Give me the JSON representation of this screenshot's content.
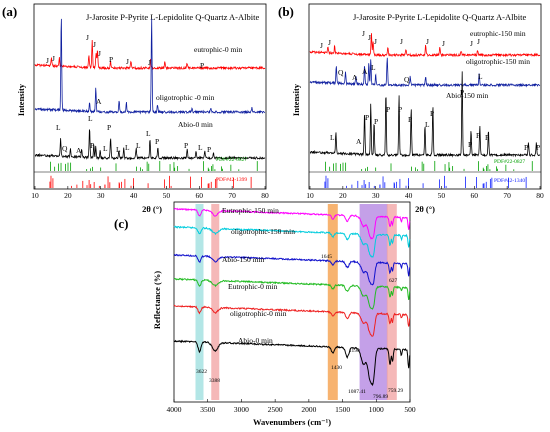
{
  "chart_data": [
    {
      "panel": "(a)",
      "type": "line",
      "legend": "J-Jarosite  P-Pyrite  L-Lepidolite  Q-Quartz  A-Albite",
      "xlabel": "2θ (°)",
      "ylabel": "Intensity",
      "xlim": [
        10,
        80
      ],
      "xticks": [
        "10",
        "20",
        "30",
        "40",
        "50",
        "60",
        "70",
        "80"
      ],
      "series": [
        {
          "name": "eutrophic-0 min",
          "color": "#ff0000",
          "peaks": [
            [
              15,
              0.25
            ],
            [
              17.4,
              0.3
            ],
            [
              26.4,
              0.4
            ],
            [
              27.4,
              0.9
            ],
            [
              28.6,
              0.5
            ],
            [
              29,
              0.6
            ],
            [
              33,
              0.2
            ],
            [
              39.2,
              0.25
            ],
            [
              45.2,
              0.3
            ],
            [
              49.5,
              0.2
            ],
            [
              56.3,
              0.15
            ]
          ]
        },
        {
          "name": "oligotrophic -0 min",
          "color": "#1020a0",
          "peaks": [
            [
              18,
              1.0
            ],
            [
              26.6,
              0.1
            ],
            [
              28.5,
              0.25
            ],
            [
              35.6,
              0.12
            ],
            [
              37.8,
              0.1
            ],
            [
              45.5,
              1.0
            ],
            [
              47.3,
              0.08
            ],
            [
              57.8,
              0.05
            ],
            [
              63.5,
              0.05
            ],
            [
              76,
              0.05
            ]
          ]
        },
        {
          "name": "Abio-0 min",
          "color": "#000000",
          "peaks": [
            [
              17.8,
              0.45
            ],
            [
              20.8,
              0.2
            ],
            [
              24.2,
              0.2
            ],
            [
              26.6,
              0.8
            ],
            [
              27.9,
              0.35
            ],
            [
              28.5,
              0.3
            ],
            [
              29.8,
              0.2
            ],
            [
              33,
              0.55
            ],
            [
              35.5,
              0.2
            ],
            [
              37,
              0.25
            ],
            [
              40.8,
              0.25
            ],
            [
              45,
              0.5
            ],
            [
              47.4,
              0.3
            ],
            [
              56.3,
              0.25
            ],
            [
              59,
              0.2
            ],
            [
              61.7,
              0.2
            ],
            [
              64.3,
              0.15
            ]
          ]
        }
      ],
      "peak_labels": {
        "eutrophic": [
          "J",
          "J",
          "J",
          "J",
          "J",
          "P",
          "J",
          "J",
          "P"
        ],
        "oligotrophic": [
          "A"
        ],
        "abio": [
          "L",
          "Q",
          "A",
          "L",
          "P",
          "L",
          "P",
          "L",
          "L",
          "L",
          "L",
          "P",
          "P",
          "L",
          "P"
        ]
      },
      "reference_cards": [
        "PDF#22-0827",
        "PDF#42-1399"
      ],
      "reference_colors": [
        "#00a000",
        "#ff0000"
      ]
    },
    {
      "panel": "(b)",
      "type": "line",
      "legend": "J-Jarosite  P-Pyrite  L-Lepidolite  Q-Quartz  A-Albite",
      "xlabel": "2θ (°)",
      "ylabel": "Intensity",
      "xlim": [
        10,
        80
      ],
      "xticks": [
        "10",
        "20",
        "30",
        "40",
        "50",
        "60",
        "70",
        "80"
      ],
      "series": [
        {
          "name": "eutrophic-150 min",
          "color": "#ff0000",
          "peaks": [
            [
              15.5,
              0.25
            ],
            [
              17.5,
              0.3
            ],
            [
              28.7,
              0.9
            ],
            [
              29.2,
              0.5
            ],
            [
              33.7,
              0.3
            ],
            [
              39.2,
              0.25
            ],
            [
              45.2,
              0.4
            ],
            [
              49.5,
              0.3
            ],
            [
              56,
              0.15
            ],
            [
              61,
              0.2
            ]
          ]
        },
        {
          "name": "oligotrophic-150 min",
          "color": "#1020a0",
          "peaks": [
            [
              18,
              0.6
            ],
            [
              20.8,
              0.4
            ],
            [
              24,
              0.3
            ],
            [
              26.6,
              0.7
            ],
            [
              27.9,
              0.8
            ],
            [
              28.5,
              0.9
            ],
            [
              30,
              0.4
            ],
            [
              33.5,
              1.0
            ],
            [
              40.5,
              0.3
            ],
            [
              45.2,
              0.3
            ],
            [
              61.5,
              0.4
            ]
          ]
        },
        {
          "name": "Abio-150 min",
          "color": "#000000",
          "peaks": [
            [
              17.9,
              0.25
            ],
            [
              26.6,
              0.5
            ],
            [
              28.5,
              0.6
            ],
            [
              29.5,
              0.4
            ],
            [
              33.1,
              0.75
            ],
            [
              37.1,
              0.7
            ],
            [
              40.8,
              0.55
            ],
            [
              45,
              0.35
            ],
            [
              47.4,
              0.6
            ],
            [
              56.3,
              1.0
            ],
            [
              59,
              0.3
            ],
            [
              61.7,
              0.35
            ],
            [
              64.3,
              0.3
            ],
            [
              76.5,
              0.15
            ],
            [
              78.9,
              0.15
            ]
          ]
        }
      ],
      "peak_labels": {
        "eutrophic": [
          "J",
          "J",
          "J",
          "J",
          "J",
          "J",
          "J",
          "J"
        ],
        "oligotrophic": [
          "Q",
          "A",
          "A",
          "L",
          "Q",
          "L"
        ],
        "abio": [
          "L",
          "A",
          "P",
          "P",
          "P",
          "P",
          "L",
          "P",
          "P",
          "P",
          "P",
          "P",
          "P"
        ]
      },
      "reference_cards": [
        "PDF#22-0827",
        "PDF#42-1340"
      ],
      "reference_colors": [
        "#00a000",
        "#1020ff"
      ]
    },
    {
      "panel": "(c)",
      "type": "line",
      "xlabel": "Wavenumbers (cm⁻¹)",
      "ylabel": "Reflectance (%)",
      "xlim": [
        4000,
        500
      ],
      "xticks": [
        "4000",
        "3500",
        "3000",
        "2500",
        "2000",
        "1500",
        "1000",
        "500"
      ],
      "series": [
        {
          "name": "Eutrophic-150 min",
          "color": "#ff00ff"
        },
        {
          "name": "oligotrophic-150 min",
          "color": "#00ccdd"
        },
        {
          "name": "Abio-150 min",
          "color": "#1010cc"
        },
        {
          "name": "Eutrophic-0 min",
          "color": "#22bb22"
        },
        {
          "name": "oligotrophic-0 min",
          "color": "#ee2020"
        },
        {
          "name": "Abio-0 min",
          "color": "#000000"
        }
      ],
      "annotations": [
        "1645",
        "3622",
        "3388",
        "1430",
        "1190",
        "1087.41",
        "796.89",
        "759.29",
        "627"
      ],
      "bands": [
        {
          "center": 3622,
          "color": "#99dddd"
        },
        {
          "center": 3388,
          "color": "#f2a0a0"
        },
        {
          "center": 1645,
          "color": "#f49a40"
        },
        {
          "center": 1040,
          "color": "#b080e0"
        },
        {
          "center": 770,
          "color": "#f2a0a0"
        }
      ]
    }
  ]
}
